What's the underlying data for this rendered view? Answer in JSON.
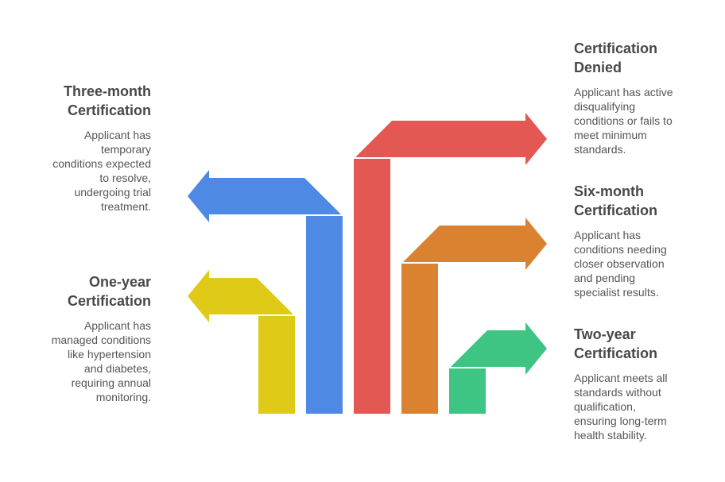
{
  "colors": {
    "yellow": "#dfcb17",
    "blue": "#4e89e3",
    "red": "#e45853",
    "orange": "#db8230",
    "green": "#3ec483",
    "heading": "#484848",
    "text": "#555555"
  },
  "items": [
    {
      "title": "One-year\nCertification",
      "description": "Applicant has\nmanaged conditions\nlike hypertension\nand diabetes,\nrequiring annual\nmonitoring.",
      "direction": "left"
    },
    {
      "title": "Three-month\nCertification",
      "description": "Applicant has\ntemporary\nconditions expected\nto resolve,\nundergoing trial\ntreatment.",
      "direction": "left"
    },
    {
      "title": "Certification\nDenied",
      "description": "Applicant has active\ndisqualifying\nconditions or fails to\nmeet minimum\nstandards.",
      "direction": "right"
    },
    {
      "title": "Six-month\nCertification",
      "description": "Applicant has\nconditions needing\ncloser observation\nand pending\nspecialist results.",
      "direction": "right"
    },
    {
      "title": "Two-year\nCertification",
      "description": "Applicant meets all\nstandards without\nqualification,\nensuring long-term\nhealth stability.",
      "direction": "right"
    }
  ]
}
